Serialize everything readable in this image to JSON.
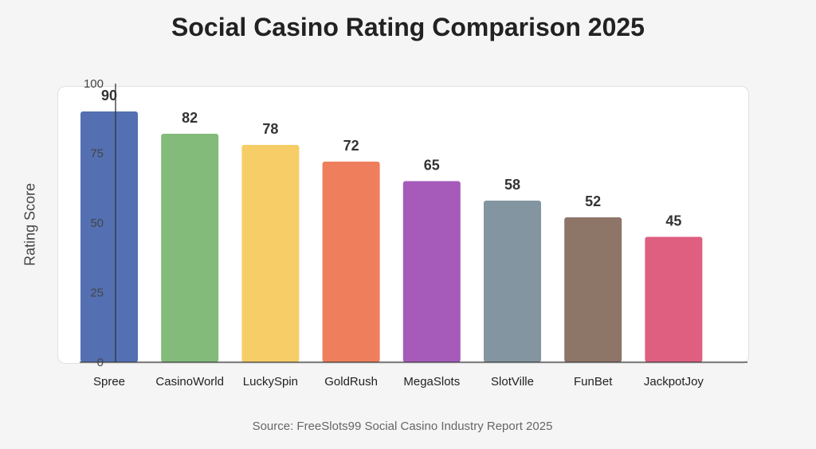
{
  "chart_data": {
    "type": "bar",
    "title": "Social Casino Rating Comparison 2025",
    "ylabel": "Rating Score",
    "xlabel": "",
    "source": "Source: FreeSlots99 Social Casino Industry Report 2025",
    "ylim": [
      0,
      100
    ],
    "yticks": [
      "0",
      "25",
      "50",
      "75",
      "100"
    ],
    "categories": [
      "Spree",
      "CasinoWorld",
      "LuckySpin",
      "GoldRush",
      "MegaSlots",
      "SlotVille",
      "FunBet",
      "JackpotJoy"
    ],
    "values": [
      90,
      82,
      78,
      72,
      65,
      58,
      52,
      45
    ],
    "value_labels": [
      "90",
      "82",
      "78",
      "72",
      "65",
      "58",
      "52",
      "45"
    ],
    "colors": [
      "#5470b3",
      "#83bb7b",
      "#f6cd66",
      "#ef7f5c",
      "#a65bbb",
      "#8395a0",
      "#8d7568",
      "#de5f80"
    ],
    "grid": false,
    "legend": "none"
  }
}
